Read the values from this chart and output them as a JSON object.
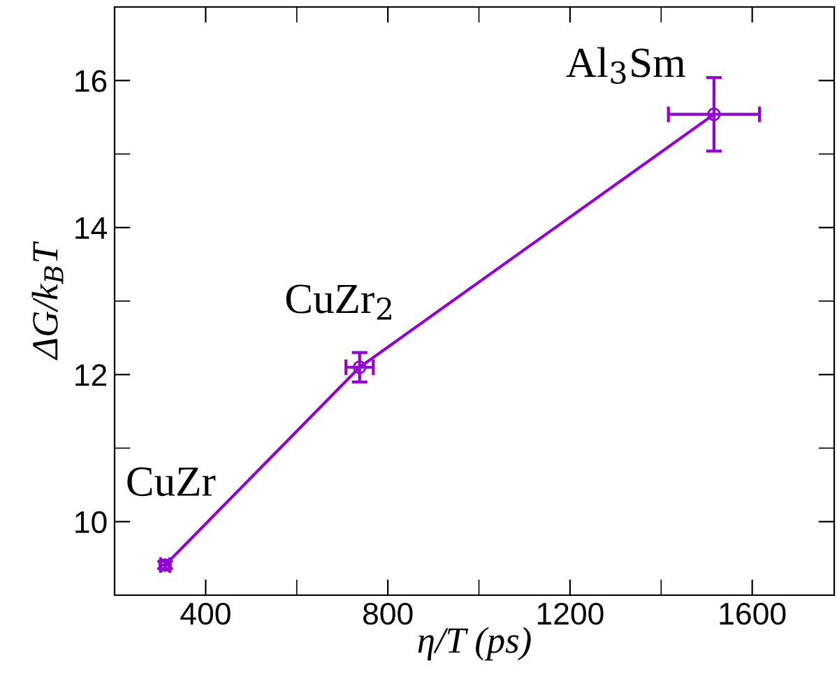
{
  "chart_data": {
    "type": "line",
    "xlabel": "η/T (ps)",
    "ylabel": "ΔG/k$_{B}$T",
    "x": [
      311,
      738,
      1516
    ],
    "series": [
      {
        "color": "#9400d3",
        "values": [
          9.41,
          12.1,
          15.54
        ],
        "errors": [
          0.05,
          0.2,
          0.5
        ],
        "xerrors": [
          10,
          30,
          100
        ]
      }
    ],
    "xlim": [
      200,
      1780
    ],
    "ylim": [
      9,
      17
    ],
    "xticks": [
      400,
      800,
      1200,
      1600
    ],
    "yticks": [
      10,
      12,
      14,
      16
    ],
    "marker": "circle",
    "line_style": "solid",
    "grid": false,
    "legend": false,
    "annotations": [
      {
        "text": "CuZr",
        "x": 311,
        "y": 9.41
      },
      {
        "text": "CuZr$_{2}$",
        "x": 738,
        "y": 12.1
      },
      {
        "text": "Al$_{3}$Sm",
        "x": 1516,
        "y": 15.54
      }
    ]
  }
}
